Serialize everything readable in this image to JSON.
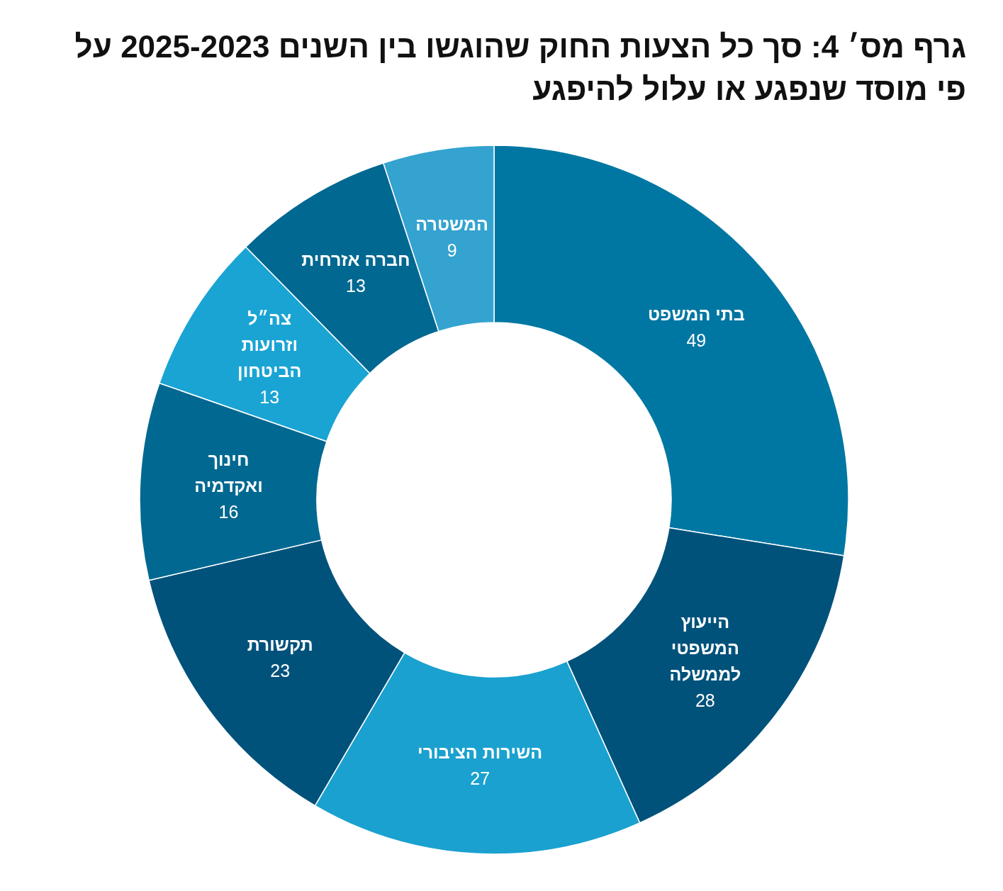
{
  "chart_data": {
    "type": "donut",
    "title": "גרף מס׳ 4: סך כל הצעות החוק שהוגשו בין השנים 2025-2023 על פי מוסד שנפגע או עלול להיפגע",
    "categories": [
      "בתי המשפט",
      "הייעוץ\nהמשפטי\nלממשלה",
      "השירות הציבורי",
      "תקשורת",
      "חינוך\nואקדמיה",
      "צה״ל\nוזרועות\nהביטחון",
      "חברה אזרחית",
      "המשטרה"
    ],
    "values": [
      49,
      28,
      27,
      23,
      16,
      13,
      13,
      9
    ],
    "colors": [
      "#0077a3",
      "#00527b",
      "#1aa1cf",
      "#00527b",
      "#006891",
      "#1aa4d4",
      "#006891",
      "#34a3d0"
    ],
    "data_labels": true
  }
}
